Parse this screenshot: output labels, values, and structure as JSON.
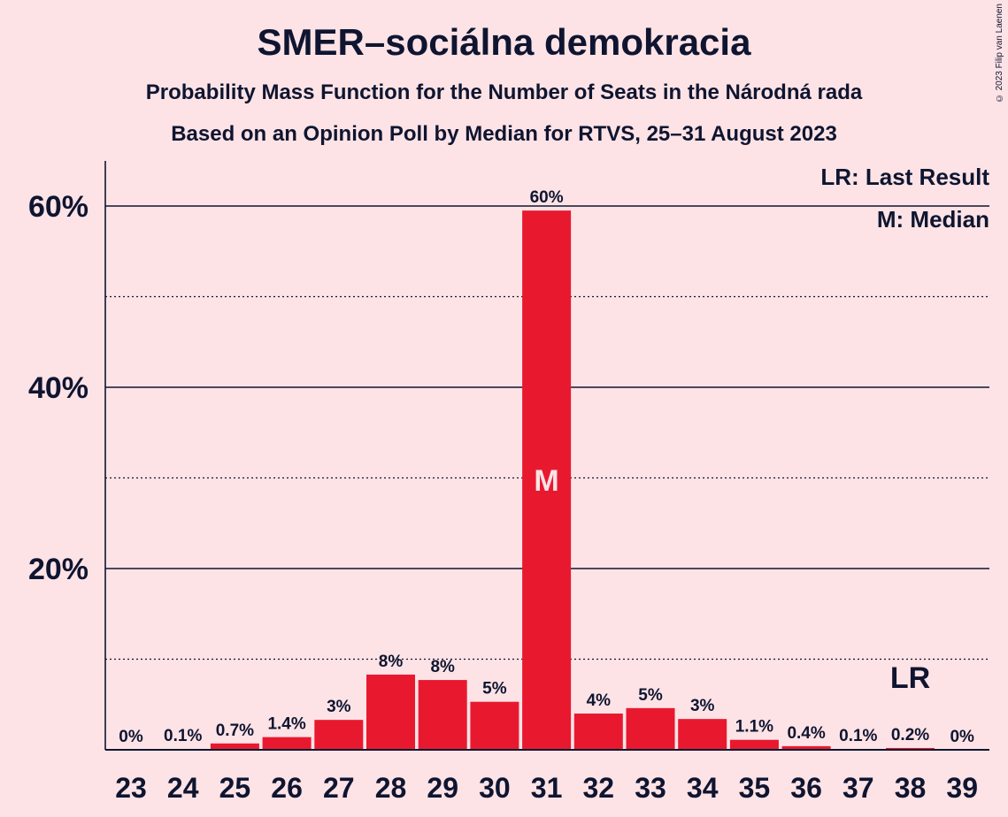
{
  "title": "SMER–sociálna demokracia",
  "subtitle1": "Probability Mass Function for the Number of Seats in the Národná rada",
  "subtitle2": "Based on an Opinion Poll by Median for RTVS, 25–31 August 2023",
  "copyright": "© 2023 Filip van Laenen",
  "legend": {
    "lr": "LR: Last Result",
    "m": "M: Median"
  },
  "colors": {
    "background": "#FDE3E6",
    "bar": "#E8192F",
    "text": "#0f1530"
  },
  "chart_data": {
    "type": "bar",
    "categories": [
      "23",
      "24",
      "25",
      "26",
      "27",
      "28",
      "29",
      "30",
      "31",
      "32",
      "33",
      "34",
      "35",
      "36",
      "37",
      "38",
      "39"
    ],
    "values": [
      0,
      0.1,
      0.7,
      1.4,
      3.3,
      8.3,
      7.7,
      5.3,
      59.5,
      4.0,
      4.6,
      3.4,
      1.1,
      0.4,
      0.1,
      0.2,
      0
    ],
    "data_labels": [
      "0%",
      "0.1%",
      "0.7%",
      "1.4%",
      "3%",
      "8%",
      "8%",
      "5%",
      "60%",
      "4%",
      "5%",
      "3%",
      "1.1%",
      "0.4%",
      "0.1%",
      "0.2%",
      "0%"
    ],
    "yticks": [
      20,
      40,
      60
    ],
    "ytick_labels": [
      "20%",
      "40%",
      "60%"
    ],
    "minor_gridlines": [
      10,
      30,
      50
    ],
    "ylim": [
      0,
      65
    ],
    "median_category": "31",
    "median_label": "M",
    "last_result_category": "38",
    "last_result_label": "LR",
    "xlabel": "",
    "ylabel": ""
  }
}
